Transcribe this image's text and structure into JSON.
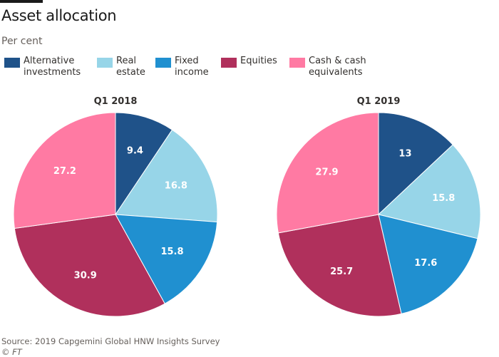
{
  "title": "Asset allocation",
  "subtitle": "Per cent",
  "source": "Source: 2019 Capgemini Global HNW Insights Survey",
  "credit": "© FT",
  "chart_data": {
    "type": "pie",
    "categories": [
      "Alternative investments",
      "Real estate",
      "Fixed income",
      "Equities",
      "Cash & cash equivalents"
    ],
    "legend": [
      {
        "label": "Alternative\ninvestments",
        "color": "#1f5289"
      },
      {
        "label": "Real\nestate",
        "color": "#97d5e8"
      },
      {
        "label": "Fixed\nincome",
        "color": "#2090d0"
      },
      {
        "label": "Equities",
        "color": "#b0305c"
      },
      {
        "label": "Cash & cash\nequivalents",
        "color": "#ff7aa3"
      }
    ],
    "colors": [
      "#1f5289",
      "#97d5e8",
      "#2090d0",
      "#b0305c",
      "#ff7aa3"
    ],
    "legend_placement": "top",
    "pies": [
      {
        "title": "Q1 2018",
        "values": [
          9.4,
          16.8,
          15.8,
          30.9,
          27.2
        ],
        "labels": [
          "9.4",
          "16.8",
          "15.8",
          "30.9",
          "27.2"
        ]
      },
      {
        "title": "Q1 2019",
        "values": [
          13,
          15.8,
          17.6,
          25.7,
          27.9
        ],
        "labels": [
          "13",
          "15.8",
          "17.6",
          "25.7",
          "27.9"
        ]
      }
    ]
  }
}
